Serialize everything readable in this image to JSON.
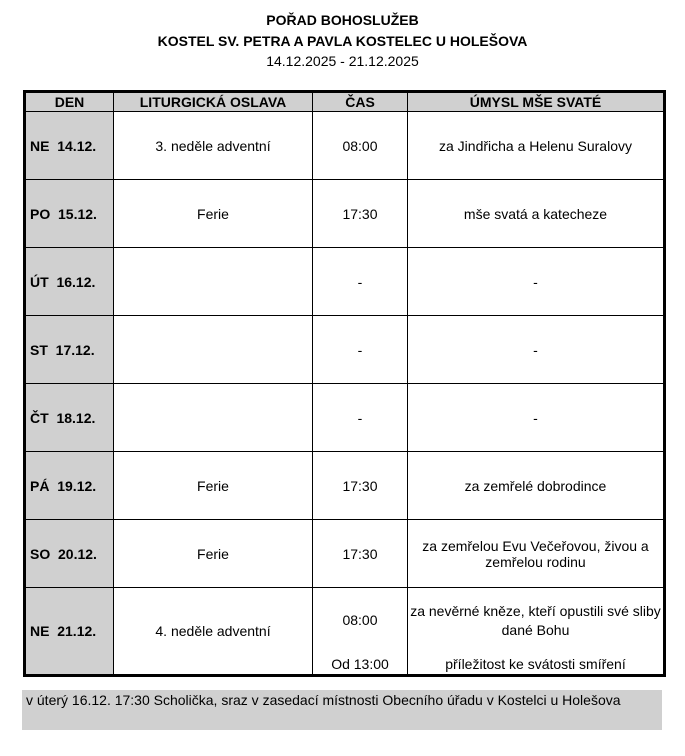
{
  "header": {
    "title": "POŘAD BOHOSLUŽEB",
    "church": "KOSTEL SV. PETRA A PAVLA KOSTELEC U HOLEŠOVA",
    "dates": "14.12.2025 - 21.12.2025"
  },
  "table": {
    "columns": [
      "DEN",
      "LITURGICKÁ OSLAVA",
      "ČAS",
      "ÚMYSL MŠE SVATÉ"
    ],
    "rows": [
      {
        "day": "NE  14.12.",
        "celebration": "3. neděle adventní",
        "time": "08:00",
        "intention": "za Jindřicha a Helenu Suralovy"
      },
      {
        "day": "PO  15.12.",
        "celebration": "Ferie",
        "time": "17:30",
        "intention": "mše svatá a katecheze"
      },
      {
        "day": "ÚT  16.12.",
        "celebration": "",
        "time": "-",
        "intention": "-"
      },
      {
        "day": "ST  17.12.",
        "celebration": "",
        "time": "-",
        "intention": "-"
      },
      {
        "day": "ČT  18.12.",
        "celebration": "",
        "time": "-",
        "intention": "-"
      },
      {
        "day": "PÁ  19.12.",
        "celebration": "Ferie",
        "time": "17:30",
        "intention": "za zemřelé dobrodince"
      },
      {
        "day": "SO  20.12.",
        "celebration": "Ferie",
        "time": "17:30",
        "intention": "za zemřelou Evu Večeřovou, živou a zemřelou rodinu"
      }
    ],
    "last": {
      "day": "NE  21.12.",
      "celebration": "4. neděle adventní",
      "time": "08:00",
      "intention": "za nevěrné kněze, kteří opustili své sliby dané Bohu",
      "time2": "Od 13:00",
      "intention2": "příležitost ke svátosti smíření"
    }
  },
  "note": "v úterý 16.12. 17:30 Scholička, sraz v zasedací místnosti Obecního úřadu v Kostelci u Holešova"
}
